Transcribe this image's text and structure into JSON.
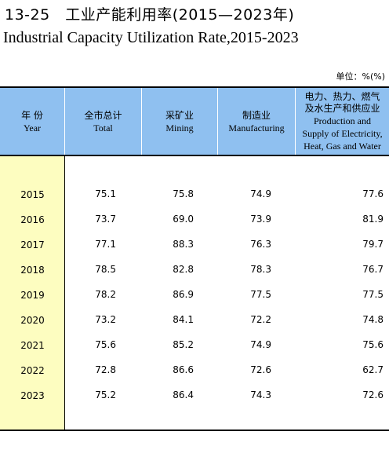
{
  "title": {
    "cn": "13-25　工业产能利用率(2015—2023年)",
    "en": "Industrial Capacity Utilization Rate,2015-2023"
  },
  "unit": "单位：%(%)",
  "headers": [
    {
      "cn": "年 份",
      "en": "Year"
    },
    {
      "cn": "全市总计",
      "en": "Total"
    },
    {
      "cn": "采矿业",
      "en": "Mining"
    },
    {
      "cn": "制造业",
      "en": "Manufacturing"
    },
    {
      "cn": "电力、热力、燃气\n及水生产和供应业",
      "en": "Production and\nSupply of Electricity,\nHeat, Gas and Water"
    }
  ],
  "rows": [
    {
      "year": "2015",
      "total": "75.1",
      "mining": "75.8",
      "manufacturing": "74.9",
      "utilities": "77.6"
    },
    {
      "year": "2016",
      "total": "73.7",
      "mining": "69.0",
      "manufacturing": "73.9",
      "utilities": "81.9"
    },
    {
      "year": "2017",
      "total": "77.1",
      "mining": "88.3",
      "manufacturing": "76.3",
      "utilities": "79.7"
    },
    {
      "year": "2018",
      "total": "78.5",
      "mining": "82.8",
      "manufacturing": "78.3",
      "utilities": "76.7"
    },
    {
      "year": "2019",
      "total": "78.2",
      "mining": "86.9",
      "manufacturing": "77.5",
      "utilities": "77.5"
    },
    {
      "year": "2020",
      "total": "73.2",
      "mining": "84.1",
      "manufacturing": "72.2",
      "utilities": "74.8"
    },
    {
      "year": "2021",
      "total": "75.6",
      "mining": "85.2",
      "manufacturing": "74.9",
      "utilities": "75.6"
    },
    {
      "year": "2022",
      "total": "72.8",
      "mining": "86.6",
      "manufacturing": "72.6",
      "utilities": "62.7"
    },
    {
      "year": "2023",
      "total": "75.2",
      "mining": "86.4",
      "manufacturing": "74.3",
      "utilities": "72.6"
    }
  ],
  "colors": {
    "header_bg": "#8fc0f0",
    "year_column_bg": "#fdfdc0"
  }
}
